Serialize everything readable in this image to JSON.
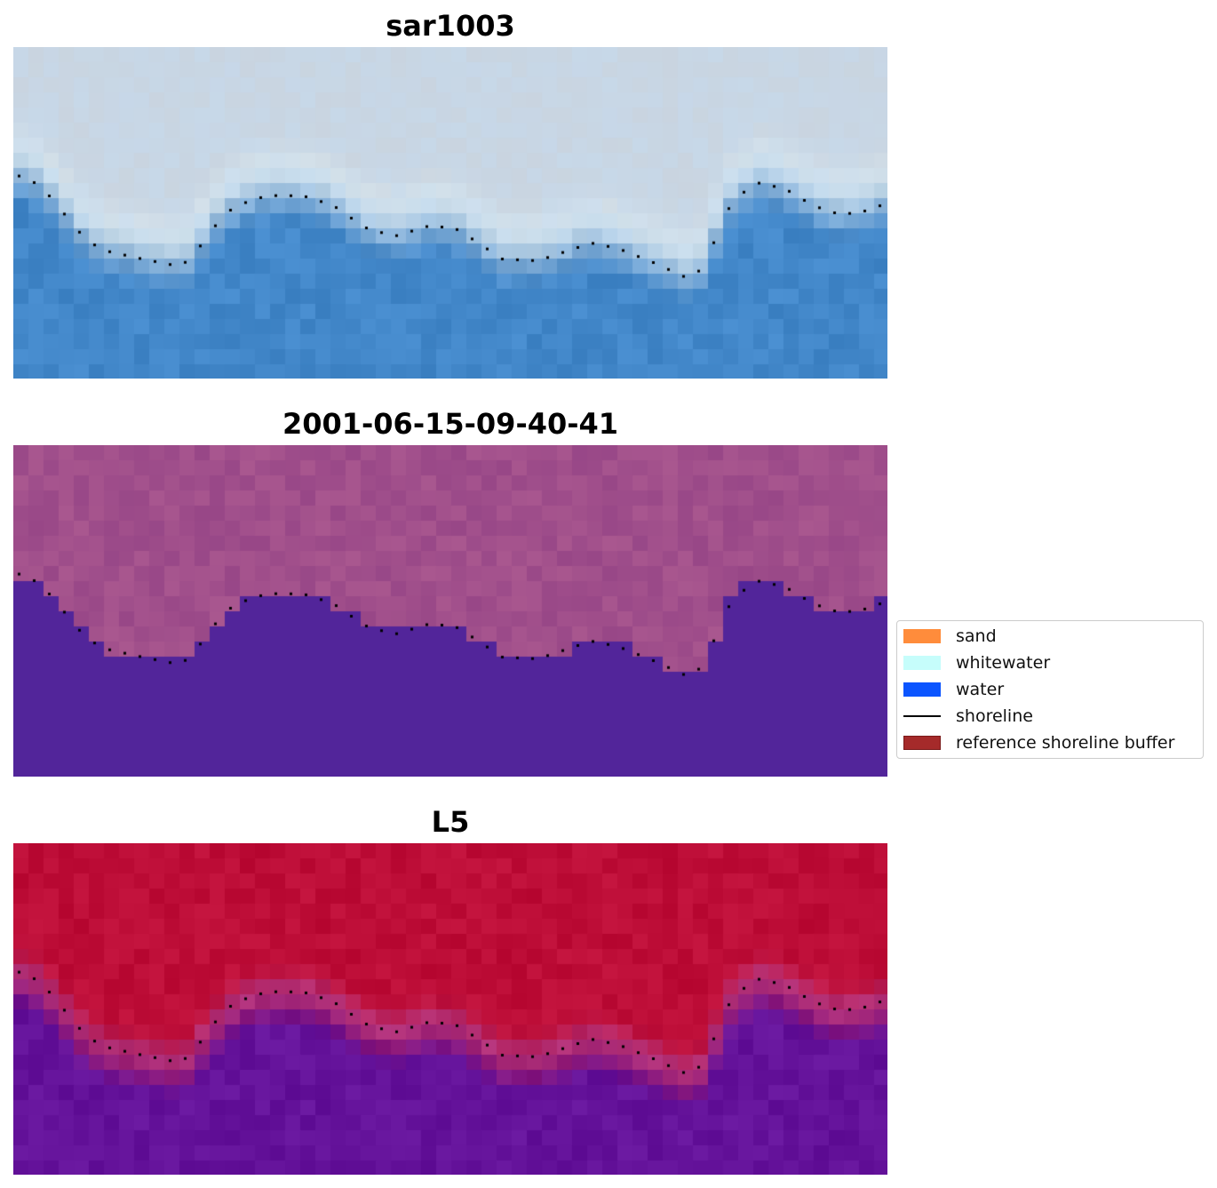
{
  "panels": [
    {
      "title": "sar1003",
      "style": "rgb"
    },
    {
      "title": "2001-06-15-09-40-41",
      "style": "classified"
    },
    {
      "title": "L5",
      "style": "probability"
    }
  ],
  "legend": {
    "items": [
      {
        "label": "sand",
        "type": "patch",
        "color": "#ff8c3b",
        "border": "#ff8c3b"
      },
      {
        "label": "whitewater",
        "type": "patch",
        "color": "#c6fdfb",
        "border": "#c6fdfb"
      },
      {
        "label": "water",
        "type": "patch",
        "color": "#0b55ff",
        "border": "#0b55ff"
      },
      {
        "label": "shoreline",
        "type": "line",
        "color": "#000000"
      },
      {
        "label": "reference shoreline buffer",
        "type": "patch",
        "color": "#a52a2a",
        "border": "#7a1a1a"
      }
    ]
  },
  "colors": {
    "water_class": "#52259a",
    "land_class": "#a9578f",
    "prob_land": "#bd0d37",
    "prob_water": "#64129a",
    "rgb_water": "#4287c9",
    "rgb_land": "#c8d6e4",
    "shoreline": "#000000"
  }
}
